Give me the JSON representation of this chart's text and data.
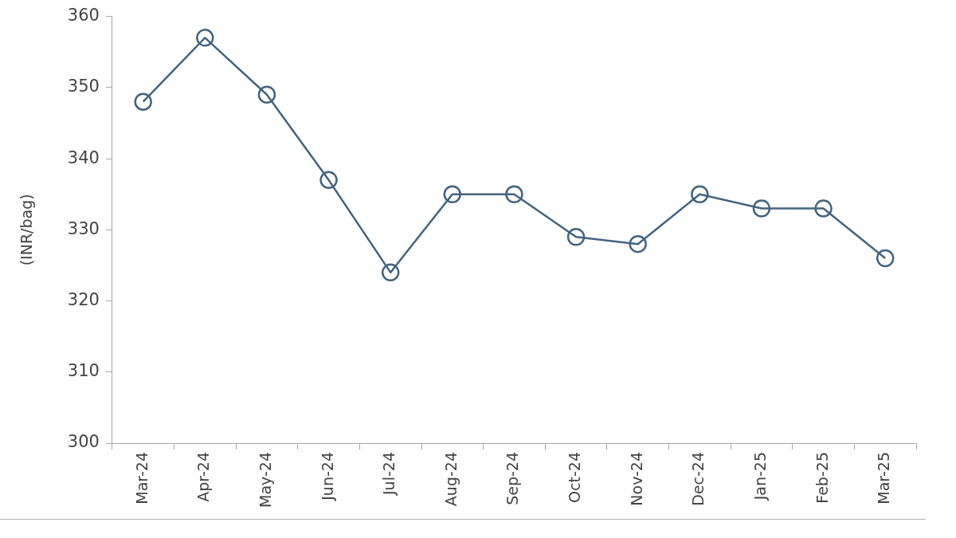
{
  "chart_data": {
    "type": "line",
    "ylabel": "(INR/bag)",
    "categories": [
      "Mar-24",
      "Apr-24",
      "May-24",
      "Jun-24",
      "Jul-24",
      "Aug-24",
      "Sep-24",
      "Oct-24",
      "Nov-24",
      "Dec-24",
      "Jan-25",
      "Feb-25",
      "Mar-25"
    ],
    "series": [
      {
        "color": "#44647e",
        "values": [
          348,
          357,
          349,
          337,
          324,
          335,
          335,
          329,
          328,
          335,
          333,
          333,
          326
        ]
      }
    ],
    "ylim": [
      300,
      360
    ],
    "yticks": [
      300,
      310,
      320,
      330,
      340,
      350,
      360
    ],
    "grid": false,
    "legend": false,
    "marker": "circle",
    "line_style": "solid"
  }
}
